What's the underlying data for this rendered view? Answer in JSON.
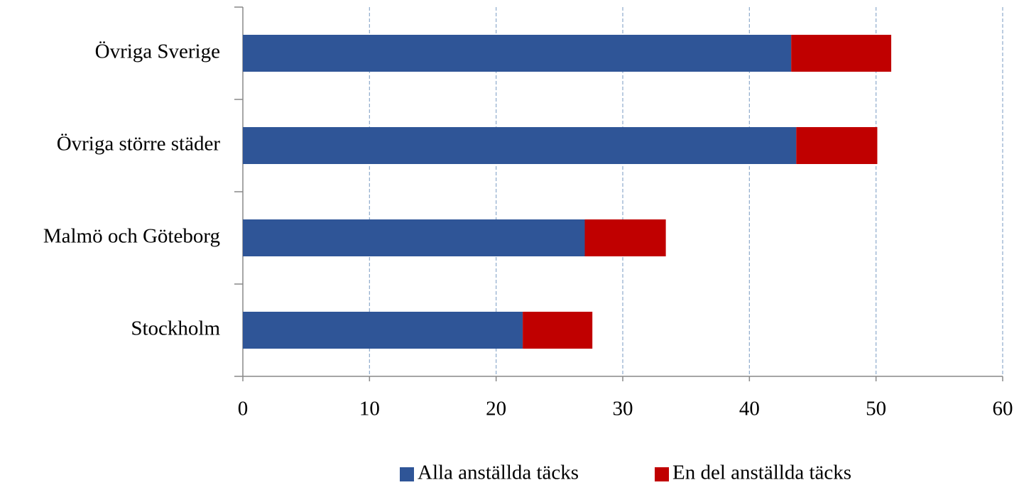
{
  "chart_data": {
    "type": "stacked-bar-horizontal",
    "categories": [
      "Övriga Sverige",
      "Övriga större städer",
      "Malmö och Göteborg",
      "Stockholm"
    ],
    "series": [
      {
        "name": "Alla anställda täcks",
        "color": "#2f5597",
        "values": [
          43.3,
          43.7,
          27.0,
          22.1
        ]
      },
      {
        "name": "En del anställda täcks",
        "color": "#c00000",
        "values": [
          7.9,
          6.4,
          6.4,
          5.5
        ]
      }
    ],
    "xlim": [
      0,
      60
    ],
    "xticks": [
      0,
      10,
      20,
      30,
      40,
      50,
      60
    ],
    "grid": true,
    "legend": "bottom"
  }
}
